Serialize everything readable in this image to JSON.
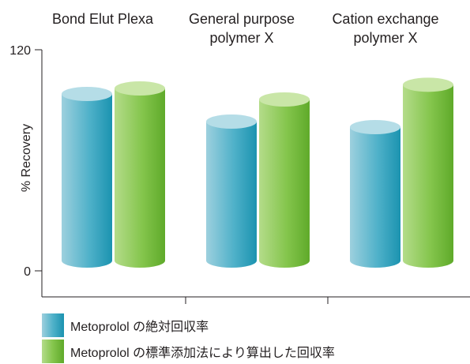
{
  "chart_data": {
    "type": "bar",
    "categories": [
      "Bond Elut Plexa",
      "General purpose\npolymer X",
      "Cation exchange\npolymer X"
    ],
    "series": [
      {
        "name": "Metoprolol の絶対回収率",
        "values": [
          96,
          81,
          78
        ],
        "color": "#3ea6c0"
      },
      {
        "name": "Metoprolol の標準添加法により算出した回収率",
        "values": [
          99,
          93,
          101
        ],
        "color": "#7dc243"
      }
    ],
    "ylabel": "% Recovery",
    "ylim": [
      0,
      120
    ],
    "yticks": [
      "0",
      "120"
    ],
    "legend_position": "bottom-left",
    "grid": false
  }
}
